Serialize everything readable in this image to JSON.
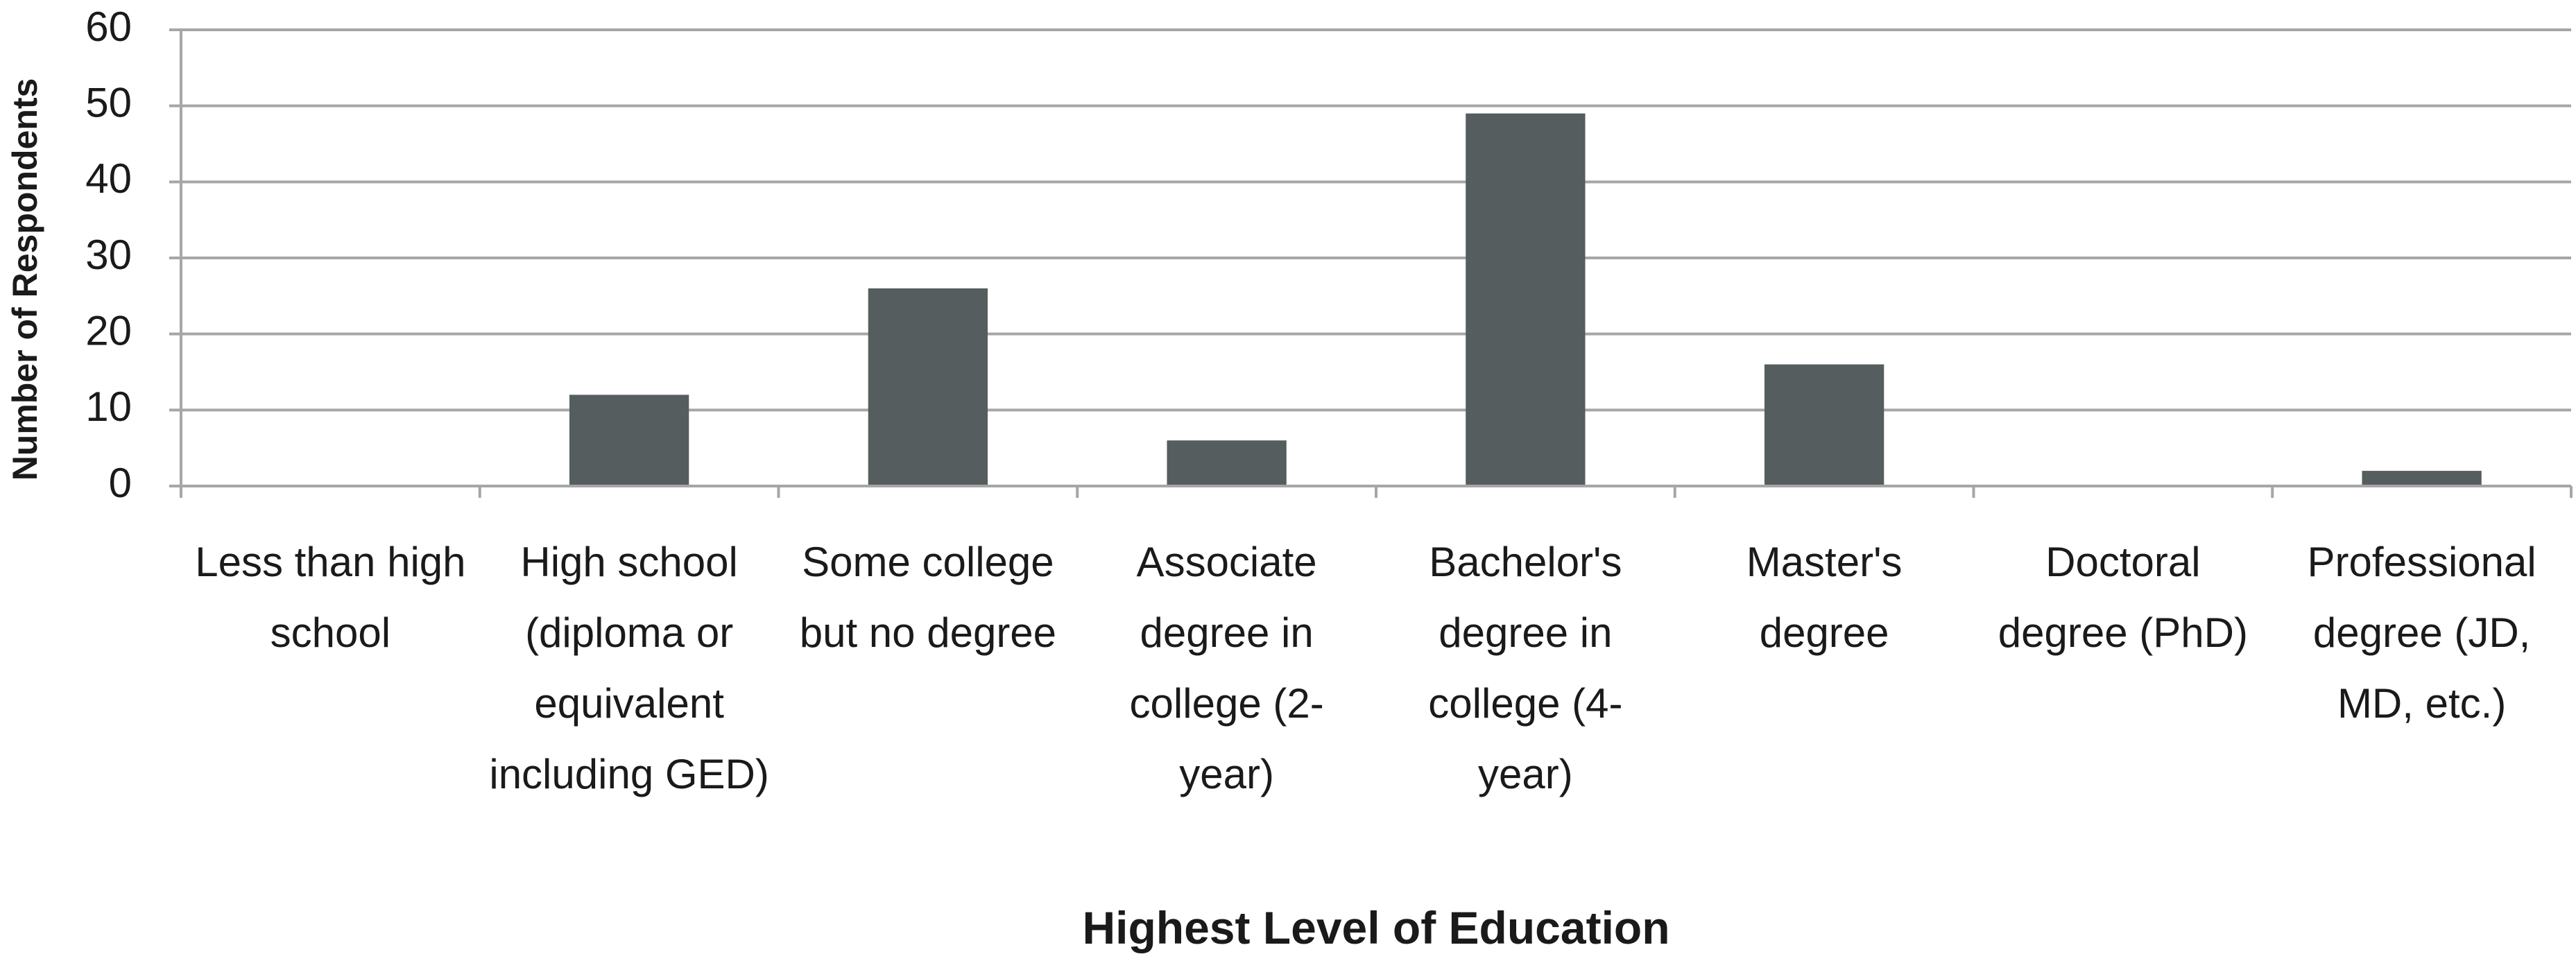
{
  "chart_data": {
    "type": "bar",
    "x_label": "Highest Level of Education",
    "y_label": "Number of Respondents",
    "categories": [
      "Less than high school",
      "High school (diploma or equivalent including GED)",
      "Some college but no degree",
      "Associate degree in college (2-year)",
      "Bachelor's degree in college (4-year)",
      "Master's degree",
      "Doctoral degree (PhD)",
      "Professional degree (JD, MD, etc.)"
    ],
    "values": [
      0,
      12,
      26,
      6,
      49,
      16,
      0,
      2
    ],
    "color": "#555d5e",
    "ylim": [
      0,
      60
    ],
    "yticks": [
      0,
      10,
      20,
      30,
      40,
      50,
      60
    ],
    "grid": true
  }
}
